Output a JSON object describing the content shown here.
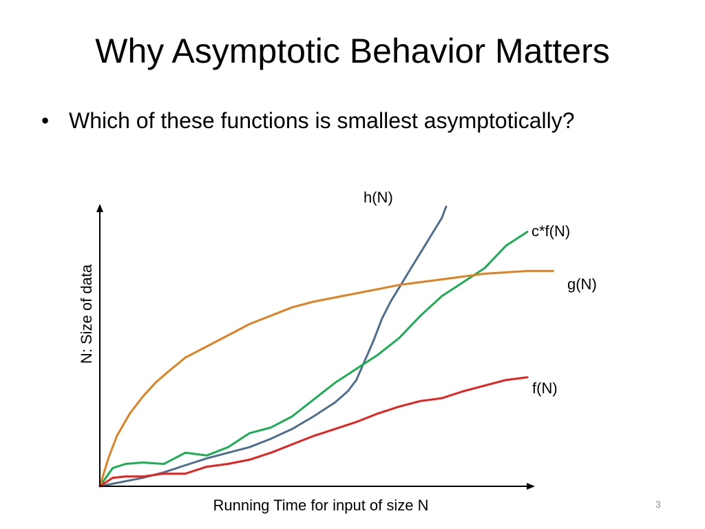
{
  "slide": {
    "title": "Why Asymptotic Behavior Matters",
    "bullet": "Which of these functions is smallest asymptotically?",
    "number": "3"
  },
  "chart_data": {
    "type": "line",
    "xlabel": "Running Time for input of size N",
    "ylabel": "N: Size of data",
    "xlim": [
      0,
      100
    ],
    "ylim": [
      0,
      100
    ],
    "grid": false,
    "legend": "inline labels at line ends",
    "series": [
      {
        "name": "h(N)",
        "color": "#4f6d8f",
        "x": [
          0,
          5,
          10,
          15,
          20,
          25,
          30,
          35,
          40,
          45,
          50,
          55,
          58,
          60,
          62,
          64,
          66,
          68,
          70,
          72,
          74,
          76,
          78,
          80,
          81
        ],
        "y": [
          0,
          1.5,
          3,
          5,
          7.5,
          10,
          12,
          14,
          17,
          20.5,
          25,
          30,
          34,
          38,
          45,
          52,
          60,
          66,
          71,
          76,
          81,
          86,
          91,
          96,
          100
        ]
      },
      {
        "name": "c*f(N)",
        "color": "#1aae52",
        "x": [
          0,
          3,
          6,
          10,
          15,
          20,
          25,
          30,
          35,
          40,
          45,
          50,
          55,
          60,
          65,
          70,
          75,
          80,
          85,
          90,
          95,
          100
        ],
        "y": [
          0,
          6.5,
          8,
          8.5,
          8,
          12,
          11,
          14,
          19,
          21,
          25,
          31,
          37,
          42,
          47,
          53,
          61,
          68,
          73,
          78,
          86,
          91
        ]
      },
      {
        "name": "g(N)",
        "color": "#e0801e",
        "x": [
          0,
          2,
          4,
          7,
          10,
          13,
          16,
          20,
          25,
          30,
          35,
          40,
          45,
          50,
          55,
          60,
          65,
          70,
          75,
          80,
          85,
          90,
          95,
          100,
          106
        ],
        "y": [
          0,
          10,
          18,
          26,
          32,
          37,
          41,
          46,
          50,
          54,
          58,
          61,
          64,
          66,
          67.5,
          69,
          70.5,
          72,
          73,
          74,
          75,
          76,
          76.5,
          77,
          77
        ]
      },
      {
        "name": "f(N)",
        "color": "#e8201c",
        "x": [
          0,
          3,
          6,
          10,
          15,
          20,
          25,
          30,
          35,
          40,
          45,
          50,
          55,
          60,
          65,
          70,
          75,
          80,
          85,
          90,
          95,
          100
        ],
        "y": [
          0,
          3,
          3.5,
          3.5,
          4.5,
          4.5,
          7,
          8,
          9.5,
          12,
          15,
          18,
          20.5,
          23,
          26,
          28.5,
          30.5,
          31.5,
          34,
          36,
          38,
          39
        ]
      }
    ]
  }
}
